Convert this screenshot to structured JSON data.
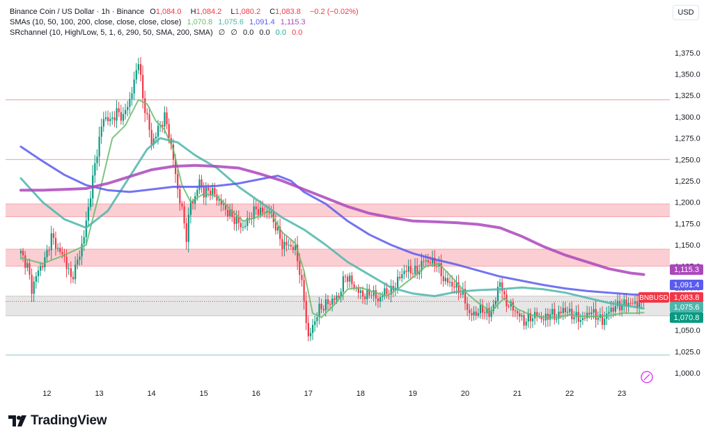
{
  "header": {
    "symbol": "Binance Coin / US Dollar · 1h · Binance",
    "open_label": "O",
    "open": "1,084.0",
    "high_label": "H",
    "high": "1,084.2",
    "low_label": "L",
    "low": "1,080.2",
    "close_label": "C",
    "close": "1,083.8",
    "change": "−0.2 (−0.02%)",
    "sma_label": "SMAs (10, 50, 100, 200, close, close, close, close)",
    "sma_values": [
      "1,070.8",
      "1,075.6",
      "1,091.4",
      "1,115.3"
    ],
    "sr_label": "SRchannel (10, High/Low, 5, 1, 6, 290, 50, SMA, 200, SMA)",
    "sr_values": [
      "∅",
      "∅",
      "0.0",
      "0.0",
      "0.0",
      "0.0"
    ]
  },
  "currency_button": "USD",
  "brand": "TradingView",
  "colors": {
    "up": "#089981",
    "down": "#f23645",
    "sma10": "#66bb6a",
    "sma50": "#4db6ac",
    "sma100": "#5b5bf0",
    "sma200": "#ab47bc",
    "zone": "#f7a6ae",
    "grayzone": "#c8c8c8",
    "resistance": "#ef9a9a",
    "support": "#80cbc4"
  },
  "chart_data": {
    "type": "candlestick",
    "symbol_tag": "BNBUSD",
    "y_range": [
      987,
      1392
    ],
    "y_ticks": [
      1000,
      1025,
      1050,
      1075,
      1100,
      1125,
      1150,
      1175,
      1200,
      1225,
      1250,
      1275,
      1300,
      1325,
      1350,
      1375
    ],
    "y_tick_labels": [
      "1,000.0",
      "1,025.0",
      "1,050.0",
      "1,075.0",
      "1,100.0",
      "1,125.0",
      "1,150.0",
      "1,175.0",
      "1,200.0",
      "1,225.0",
      "1,250.0",
      "1,275.0",
      "1,300.0",
      "1,325.0",
      "1,350.0",
      "1,375.0"
    ],
    "x_ticks": [
      {
        "label": "12",
        "hour": 12
      },
      {
        "label": "13",
        "hour": 36
      },
      {
        "label": "14",
        "hour": 60
      },
      {
        "label": "15",
        "hour": 84
      },
      {
        "label": "16",
        "hour": 108
      },
      {
        "label": "17",
        "hour": 132
      },
      {
        "label": "18",
        "hour": 156
      },
      {
        "label": "19",
        "hour": 180
      },
      {
        "label": "20",
        "hour": 204
      },
      {
        "label": "21",
        "hour": 228
      },
      {
        "label": "22",
        "hour": 252
      },
      {
        "label": "23",
        "hour": 276
      }
    ],
    "x_range_hours": [
      -7,
      298
    ],
    "last_hour": 286,
    "price_points": [
      [
        0,
        1140
      ],
      [
        3,
        1125
      ],
      [
        5,
        1098
      ],
      [
        8,
        1120
      ],
      [
        11,
        1132
      ],
      [
        14,
        1160
      ],
      [
        17,
        1145
      ],
      [
        20,
        1135
      ],
      [
        23,
        1110
      ],
      [
        26,
        1130
      ],
      [
        29,
        1160
      ],
      [
        32,
        1210
      ],
      [
        35,
        1260
      ],
      [
        38,
        1300
      ],
      [
        41,
        1295
      ],
      [
        44,
        1305
      ],
      [
        47,
        1300
      ],
      [
        50,
        1320
      ],
      [
        52,
        1340
      ],
      [
        54,
        1368
      ],
      [
        56,
        1320
      ],
      [
        58,
        1300
      ],
      [
        60,
        1268
      ],
      [
        62,
        1280
      ],
      [
        64,
        1290
      ],
      [
        66,
        1300
      ],
      [
        68,
        1280
      ],
      [
        70,
        1250
      ],
      [
        72,
        1215
      ],
      [
        74,
        1190
      ],
      [
        76,
        1160
      ],
      [
        78,
        1200
      ],
      [
        80,
        1205
      ],
      [
        82,
        1225
      ],
      [
        84,
        1210
      ],
      [
        87,
        1215
      ],
      [
        90,
        1205
      ],
      [
        93,
        1195
      ],
      [
        96,
        1185
      ],
      [
        99,
        1178
      ],
      [
        102,
        1170
      ],
      [
        105,
        1182
      ],
      [
        108,
        1192
      ],
      [
        111,
        1188
      ],
      [
        114,
        1190
      ],
      [
        117,
        1172
      ],
      [
        120,
        1150
      ],
      [
        123,
        1150
      ],
      [
        126,
        1145
      ],
      [
        128,
        1120
      ],
      [
        130,
        1085
      ],
      [
        132,
        1040
      ],
      [
        134,
        1055
      ],
      [
        137,
        1075
      ],
      [
        140,
        1080
      ],
      [
        143,
        1085
      ],
      [
        146,
        1090
      ],
      [
        149,
        1115
      ],
      [
        152,
        1105
      ],
      [
        155,
        1095
      ],
      [
        158,
        1090
      ],
      [
        161,
        1095
      ],
      [
        164,
        1085
      ],
      [
        167,
        1095
      ],
      [
        170,
        1095
      ],
      [
        173,
        1108
      ],
      [
        176,
        1120
      ],
      [
        179,
        1120
      ],
      [
        182,
        1118
      ],
      [
        185,
        1132
      ],
      [
        188,
        1130
      ],
      [
        191,
        1128
      ],
      [
        194,
        1110
      ],
      [
        197,
        1105
      ],
      [
        200,
        1100
      ],
      [
        203,
        1092
      ],
      [
        206,
        1068
      ],
      [
        209,
        1070
      ],
      [
        212,
        1075
      ],
      [
        215,
        1068
      ],
      [
        218,
        1085
      ],
      [
        220,
        1110
      ],
      [
        222,
        1085
      ],
      [
        225,
        1078
      ],
      [
        228,
        1070
      ],
      [
        231,
        1060
      ],
      [
        234,
        1065
      ],
      [
        237,
        1068
      ],
      [
        240,
        1062
      ],
      [
        243,
        1070
      ],
      [
        246,
        1065
      ],
      [
        249,
        1075
      ],
      [
        252,
        1070
      ],
      [
        255,
        1065
      ],
      [
        258,
        1062
      ],
      [
        261,
        1072
      ],
      [
        264,
        1068
      ],
      [
        267,
        1060
      ],
      [
        270,
        1072
      ],
      [
        273,
        1078
      ],
      [
        276,
        1080
      ],
      [
        279,
        1082
      ],
      [
        282,
        1081
      ],
      [
        285,
        1082
      ],
      [
        286,
        1083.8
      ]
    ],
    "sma_series": [
      {
        "key": "sma10",
        "points": [
          [
            0,
            1135
          ],
          [
            10,
            1128
          ],
          [
            20,
            1138
          ],
          [
            30,
            1150
          ],
          [
            36,
            1210
          ],
          [
            42,
            1275
          ],
          [
            48,
            1290
          ],
          [
            54,
            1320
          ],
          [
            58,
            1315
          ],
          [
            62,
            1295
          ],
          [
            66,
            1285
          ],
          [
            70,
            1262
          ],
          [
            74,
            1220
          ],
          [
            78,
            1200
          ],
          [
            84,
            1210
          ],
          [
            90,
            1207
          ],
          [
            96,
            1192
          ],
          [
            102,
            1178
          ],
          [
            108,
            1182
          ],
          [
            114,
            1190
          ],
          [
            120,
            1165
          ],
          [
            126,
            1152
          ],
          [
            130,
            1120
          ],
          [
            134,
            1070
          ],
          [
            138,
            1065
          ],
          [
            144,
            1080
          ],
          [
            150,
            1098
          ],
          [
            156,
            1100
          ],
          [
            162,
            1095
          ],
          [
            168,
            1090
          ],
          [
            174,
            1100
          ],
          [
            180,
            1112
          ],
          [
            186,
            1125
          ],
          [
            192,
            1128
          ],
          [
            198,
            1112
          ],
          [
            204,
            1095
          ],
          [
            210,
            1082
          ],
          [
            216,
            1072
          ],
          [
            222,
            1088
          ],
          [
            228,
            1075
          ],
          [
            234,
            1068
          ],
          [
            240,
            1065
          ],
          [
            246,
            1065
          ],
          [
            252,
            1068
          ],
          [
            258,
            1066
          ],
          [
            264,
            1066
          ],
          [
            270,
            1067
          ],
          [
            276,
            1070
          ],
          [
            282,
            1070
          ],
          [
            286,
            1070.8
          ]
        ]
      },
      {
        "key": "sma50",
        "points": [
          [
            0,
            1228
          ],
          [
            10,
            1200
          ],
          [
            20,
            1180
          ],
          [
            30,
            1170
          ],
          [
            40,
            1190
          ],
          [
            50,
            1230
          ],
          [
            58,
            1262
          ],
          [
            64,
            1275
          ],
          [
            72,
            1270
          ],
          [
            80,
            1255
          ],
          [
            90,
            1240
          ],
          [
            100,
            1218
          ],
          [
            110,
            1200
          ],
          [
            120,
            1182
          ],
          [
            130,
            1168
          ],
          [
            140,
            1150
          ],
          [
            150,
            1130
          ],
          [
            160,
            1115
          ],
          [
            170,
            1100
          ],
          [
            180,
            1093
          ],
          [
            190,
            1090
          ],
          [
            200,
            1095
          ],
          [
            210,
            1097
          ],
          [
            220,
            1098
          ],
          [
            230,
            1100
          ],
          [
            240,
            1098
          ],
          [
            250,
            1094
          ],
          [
            260,
            1088
          ],
          [
            270,
            1082
          ],
          [
            280,
            1078
          ],
          [
            286,
            1075.6
          ]
        ]
      },
      {
        "key": "sma100",
        "points": [
          [
            0,
            1265
          ],
          [
            10,
            1248
          ],
          [
            20,
            1232
          ],
          [
            30,
            1220
          ],
          [
            40,
            1214
          ],
          [
            50,
            1212
          ],
          [
            60,
            1215
          ],
          [
            70,
            1218
          ],
          [
            80,
            1218
          ],
          [
            90,
            1219
          ],
          [
            100,
            1222
          ],
          [
            110,
            1227
          ],
          [
            118,
            1231
          ],
          [
            124,
            1225
          ],
          [
            130,
            1212
          ],
          [
            140,
            1198
          ],
          [
            150,
            1178
          ],
          [
            160,
            1162
          ],
          [
            170,
            1150
          ],
          [
            180,
            1140
          ],
          [
            190,
            1133
          ],
          [
            200,
            1127
          ],
          [
            210,
            1120
          ],
          [
            220,
            1113
          ],
          [
            230,
            1108
          ],
          [
            240,
            1103
          ],
          [
            250,
            1099
          ],
          [
            260,
            1096
          ],
          [
            270,
            1094
          ],
          [
            280,
            1092
          ],
          [
            286,
            1091.4
          ]
        ]
      },
      {
        "key": "sma200",
        "points": [
          [
            0,
            1214
          ],
          [
            10,
            1214
          ],
          [
            20,
            1215
          ],
          [
            30,
            1216
          ],
          [
            40,
            1222
          ],
          [
            50,
            1230
          ],
          [
            60,
            1238
          ],
          [
            70,
            1242
          ],
          [
            80,
            1243
          ],
          [
            90,
            1242
          ],
          [
            100,
            1240
          ],
          [
            110,
            1233
          ],
          [
            120,
            1225
          ],
          [
            130,
            1215
          ],
          [
            140,
            1205
          ],
          [
            150,
            1195
          ],
          [
            160,
            1187
          ],
          [
            170,
            1182
          ],
          [
            180,
            1178
          ],
          [
            190,
            1177
          ],
          [
            200,
            1176
          ],
          [
            210,
            1174
          ],
          [
            220,
            1170
          ],
          [
            230,
            1160
          ],
          [
            240,
            1148
          ],
          [
            250,
            1138
          ],
          [
            260,
            1130
          ],
          [
            270,
            1122
          ],
          [
            280,
            1117
          ],
          [
            286,
            1115.3
          ]
        ]
      }
    ],
    "zones": [
      {
        "from": 1183,
        "to": 1198,
        "type": "resistance-zone"
      },
      {
        "from": 1125,
        "to": 1145,
        "type": "resistance-zone"
      },
      {
        "from": 1067,
        "to": 1090,
        "type": "gray-zone"
      }
    ],
    "levels": [
      {
        "value": 1320,
        "type": "resistance"
      },
      {
        "value": 1250,
        "type": "resistance"
      },
      {
        "value": 1021,
        "type": "support"
      }
    ],
    "price_tags": [
      {
        "value": 1115.3,
        "label": "1,115.3",
        "key": "sma200"
      },
      {
        "value": 1091.4,
        "label": "1,091.4",
        "key": "sma100"
      },
      {
        "value": 1083.8,
        "label": "1,083.8",
        "key": "down",
        "tag": "BNBUSD"
      },
      {
        "value": 1075.6,
        "label": "1,075.6",
        "key": "sma50"
      },
      {
        "value": 1070.8,
        "label": "1,070.8",
        "key": "up"
      }
    ]
  }
}
